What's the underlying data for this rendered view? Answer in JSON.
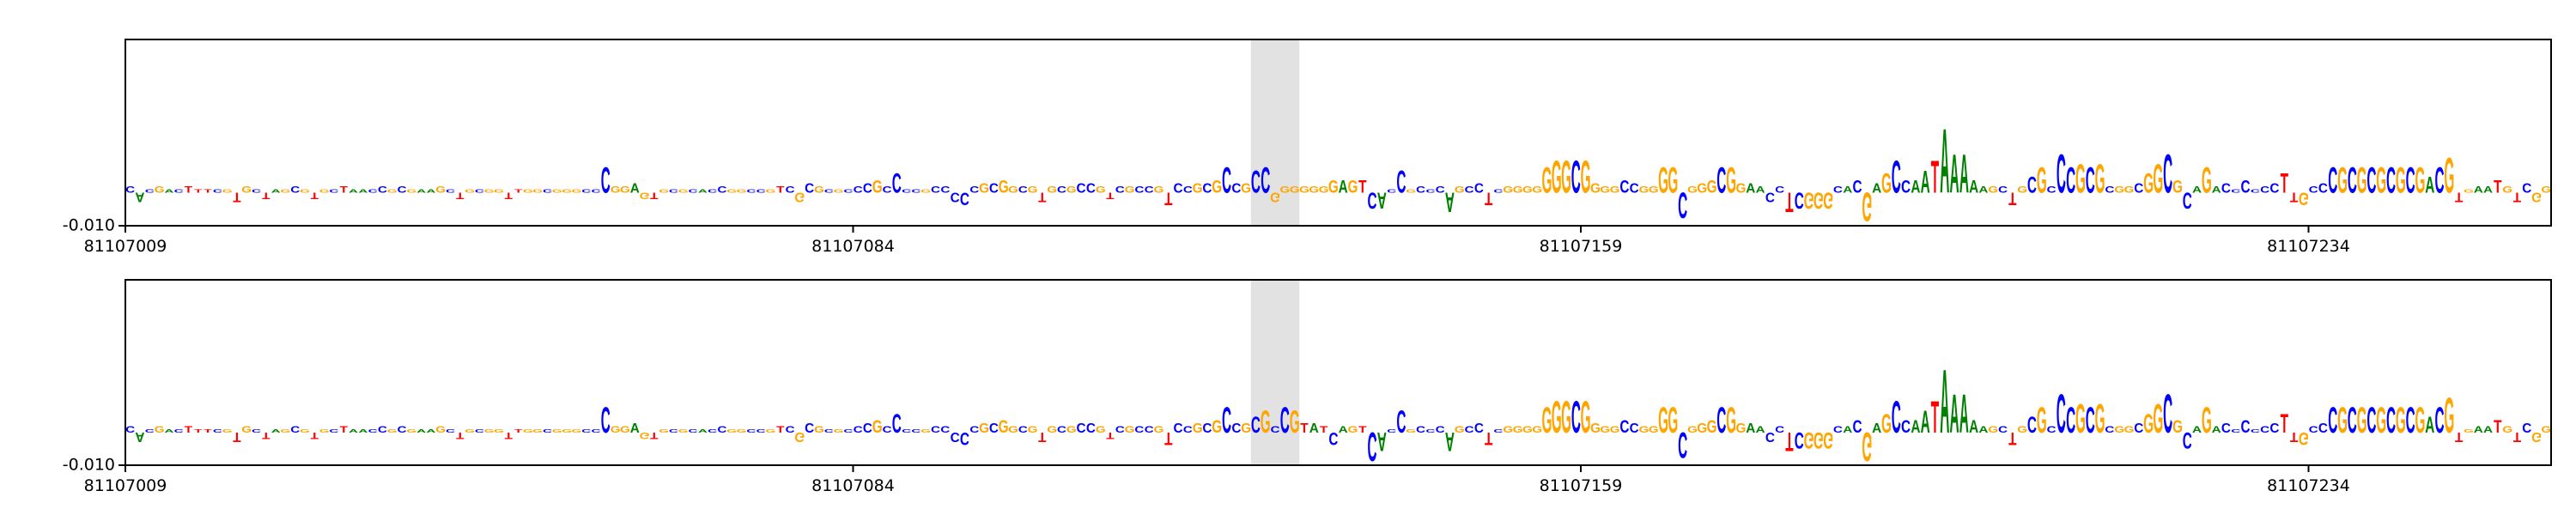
{
  "chart_data": [
    {
      "type": "logo",
      "xlim": [
        81107009,
        81107259
      ],
      "xticks": [
        81107009,
        81107084,
        81107159,
        81107234
      ],
      "ylim": [
        -0.01,
        0.0465
      ],
      "yticks": [
        {
          "value": -0.01,
          "label": "-0.010"
        }
      ],
      "highlight": [
        81107125,
        81107130
      ],
      "colors": {
        "A": "#008000",
        "C": "#0000ff",
        "G": "#ffa500",
        "T": "#ff0000"
      },
      "letters": [
        "C",
        "A",
        "C",
        "G",
        "A",
        "C",
        "T",
        "T",
        "T",
        "C",
        "G",
        "T",
        "G",
        "C",
        "T",
        "A",
        "G",
        "C",
        "G",
        "T",
        "G",
        "C",
        "T",
        "A",
        "A",
        "C",
        "C",
        "G",
        "C",
        "G",
        "A",
        "A",
        "G",
        "C",
        "T",
        "G",
        "C",
        "G",
        "G",
        "T",
        "T",
        "G",
        "G",
        "C",
        "G",
        "G",
        "G",
        "C",
        "C",
        "C",
        "G",
        "G",
        "A",
        "G",
        "T",
        "G",
        "C",
        "G",
        "C",
        "A",
        "C",
        "C",
        "G",
        "G",
        "C",
        "C",
        "G",
        "T",
        "C",
        "G",
        "C",
        "G",
        "C",
        "G",
        "C",
        "C",
        "C",
        "G",
        "C",
        "C",
        "C",
        "C",
        "G",
        "C",
        "C",
        "C",
        "C",
        "C",
        "G",
        "C",
        "G",
        "G",
        "C",
        "G",
        "T",
        "G",
        "C",
        "G",
        "C",
        "C",
        "G",
        "T",
        "C",
        "G",
        "C",
        "C",
        "G",
        "T",
        "C",
        "C",
        "G",
        "C",
        "G",
        "C",
        "C",
        "G",
        "C",
        "C",
        "G",
        "G",
        "G",
        "G",
        "G",
        "G",
        "G",
        "A",
        "G",
        "T",
        "C",
        "A",
        "C",
        "C",
        "G",
        "C",
        "C",
        "C",
        "A",
        "G",
        "C",
        "C",
        "T",
        "C",
        "G",
        "G",
        "G",
        "G",
        "G",
        "G",
        "G",
        "C",
        "G",
        "G",
        "G",
        "G",
        "C",
        "C",
        "G",
        "G",
        "G",
        "G",
        "C",
        "G",
        "G",
        "G",
        "C",
        "G",
        "G",
        "A",
        "A",
        "C",
        "C",
        "T",
        "C",
        "G",
        "G",
        "G",
        "C",
        "A",
        "C",
        "G",
        "A",
        "G",
        "C",
        "C",
        "A",
        "A",
        "T",
        "A",
        "A",
        "A",
        "A",
        "A",
        "G",
        "C",
        "T",
        "G",
        "C",
        "G",
        "C",
        "C",
        "C",
        "G",
        "C",
        "G",
        "C",
        "G",
        "G",
        "C",
        "G",
        "G",
        "C",
        "G",
        "C",
        "A",
        "G",
        "A",
        "C",
        "C",
        "C",
        "C",
        "C",
        "C",
        "T",
        "T",
        "G",
        "C",
        "C",
        "C",
        "G",
        "C",
        "G",
        "C",
        "G",
        "C",
        "G",
        "C",
        "G",
        "A",
        "C",
        "G",
        "T",
        "G",
        "A",
        "A",
        "T",
        "G",
        "T",
        "C",
        "G",
        "G"
      ],
      "values": [
        0.002,
        -0.003,
        0.001,
        0.002,
        0.001,
        0.001,
        0.002,
        0.001,
        0.001,
        0.001,
        0.001,
        -0.003,
        0.002,
        0.001,
        -0.002,
        0.001,
        0.001,
        0.002,
        0.001,
        -0.002,
        0.001,
        0.001,
        0.002,
        0.001,
        0.001,
        0.001,
        0.002,
        0.001,
        0.002,
        0.001,
        0.001,
        0.001,
        0.002,
        0.001,
        -0.002,
        0.001,
        0.001,
        0.001,
        0.001,
        -0.002,
        0.001,
        0.001,
        0.001,
        0.001,
        0.001,
        0.001,
        0.001,
        0.001,
        0.001,
        0.008,
        0.002,
        0.002,
        0.003,
        -0.002,
        -0.002,
        0.001,
        0.001,
        0.001,
        0.001,
        0.001,
        0.001,
        0.002,
        0.001,
        0.001,
        0.001,
        0.001,
        0.001,
        0.002,
        0.002,
        -0.003,
        0.003,
        0.002,
        0.001,
        0.001,
        0.001,
        0.002,
        0.003,
        0.004,
        0.002,
        0.006,
        0.001,
        0.001,
        0.001,
        0.002,
        0.002,
        -0.003,
        -0.004,
        0.002,
        0.003,
        0.003,
        0.004,
        0.002,
        0.002,
        0.002,
        -0.003,
        0.002,
        0.002,
        0.002,
        0.003,
        0.003,
        0.002,
        -0.002,
        0.002,
        0.002,
        0.002,
        0.002,
        0.002,
        -0.004,
        0.003,
        0.002,
        0.003,
        0.003,
        0.004,
        0.008,
        0.003,
        0.003,
        0.007,
        0.008,
        -0.003,
        0.002,
        0.002,
        0.002,
        0.002,
        0.002,
        0.004,
        0.004,
        0.004,
        0.004,
        -0.005,
        -0.005,
        0.001,
        0.007,
        0.001,
        0.002,
        0.001,
        0.002,
        -0.006,
        0.002,
        0.002,
        0.003,
        -0.004,
        0.001,
        0.002,
        0.002,
        0.002,
        0.002,
        0.008,
        0.01,
        0.01,
        0.01,
        0.01,
        0.003,
        0.002,
        0.002,
        0.004,
        0.003,
        0.002,
        0.002,
        0.008,
        0.008,
        -0.008,
        0.002,
        0.003,
        0.004,
        0.008,
        0.008,
        0.003,
        0.003,
        0.002,
        -0.003,
        0.002,
        -0.006,
        -0.005,
        -0.005,
        -0.005,
        -0.005,
        0.002,
        0.002,
        0.004,
        -0.009,
        0.003,
        0.006,
        0.01,
        0.004,
        0.004,
        0.007,
        0.01,
        0.02,
        0.012,
        0.012,
        0.004,
        0.002,
        0.002,
        0.002,
        -0.004,
        0.002,
        0.005,
        0.008,
        0.002,
        0.012,
        0.008,
        0.009,
        0.008,
        0.009,
        0.002,
        0.002,
        0.002,
        0.003,
        0.006,
        0.009,
        0.012,
        0.004,
        -0.005,
        0.002,
        0.008,
        0.002,
        0.003,
        0.001,
        0.004,
        0.001,
        0.002,
        0.003,
        0.006,
        -0.003,
        -0.004,
        0.002,
        0.003,
        0.008,
        0.008,
        0.008,
        0.008,
        0.008,
        0.008,
        0.008,
        0.008,
        0.008,
        0.008,
        0.005,
        0.008,
        0.011,
        -0.003,
        0.001,
        0.002,
        0.002,
        0.004,
        0.002,
        -0.003,
        0.003,
        -0.003,
        0.002
      ]
    },
    {
      "type": "logo",
      "xlim": [
        81107009,
        81107259
      ],
      "xticks": [
        81107009,
        81107084,
        81107159,
        81107234
      ],
      "ylim": [
        -0.01,
        0.0465
      ],
      "yticks": [
        {
          "value": -0.01,
          "label": "-0.010"
        }
      ],
      "highlight": [
        81107125,
        81107130
      ],
      "colors": {
        "A": "#008000",
        "C": "#0000ff",
        "G": "#ffa500",
        "T": "#ff0000"
      },
      "letters": [
        "C",
        "A",
        "C",
        "G",
        "A",
        "C",
        "T",
        "T",
        "T",
        "C",
        "G",
        "T",
        "G",
        "C",
        "T",
        "A",
        "G",
        "C",
        "G",
        "T",
        "G",
        "C",
        "T",
        "A",
        "A",
        "C",
        "C",
        "G",
        "C",
        "G",
        "A",
        "A",
        "G",
        "C",
        "T",
        "G",
        "C",
        "G",
        "G",
        "T",
        "T",
        "G",
        "G",
        "C",
        "G",
        "G",
        "G",
        "C",
        "C",
        "C",
        "G",
        "G",
        "A",
        "G",
        "T",
        "G",
        "C",
        "G",
        "C",
        "A",
        "C",
        "C",
        "G",
        "G",
        "C",
        "C",
        "G",
        "T",
        "C",
        "G",
        "C",
        "G",
        "C",
        "G",
        "C",
        "C",
        "C",
        "G",
        "C",
        "C",
        "C",
        "C",
        "G",
        "C",
        "C",
        "C",
        "C",
        "C",
        "G",
        "C",
        "G",
        "G",
        "C",
        "G",
        "T",
        "G",
        "C",
        "G",
        "C",
        "C",
        "G",
        "T",
        "C",
        "G",
        "C",
        "C",
        "G",
        "T",
        "C",
        "C",
        "G",
        "C",
        "G",
        "C",
        "C",
        "G",
        "C",
        "G",
        "C",
        "C",
        "G",
        "T",
        "A",
        "T",
        "C",
        "A",
        "G",
        "T",
        "C",
        "A",
        "C",
        "C",
        "G",
        "C",
        "C",
        "C",
        "A",
        "G",
        "C",
        "C",
        "T",
        "C",
        "G",
        "G",
        "G",
        "G",
        "G",
        "G",
        "G",
        "C",
        "G",
        "G",
        "G",
        "G",
        "C",
        "C",
        "G",
        "G",
        "G",
        "G",
        "C",
        "G",
        "G",
        "G",
        "C",
        "G",
        "G",
        "A",
        "A",
        "C",
        "C",
        "T",
        "C",
        "G",
        "G",
        "G",
        "C",
        "A",
        "C",
        "G",
        "A",
        "G",
        "C",
        "C",
        "A",
        "A",
        "T",
        "A",
        "A",
        "A",
        "A",
        "A",
        "G",
        "C",
        "T",
        "G",
        "C",
        "G",
        "C",
        "C",
        "C",
        "G",
        "C",
        "G",
        "C",
        "G",
        "G",
        "C",
        "G",
        "G",
        "C",
        "G",
        "C",
        "A",
        "G",
        "A",
        "C",
        "C",
        "C",
        "C",
        "C",
        "C",
        "T",
        "T",
        "G",
        "C",
        "C",
        "C",
        "G",
        "C",
        "G",
        "C",
        "G",
        "C",
        "G",
        "C",
        "G",
        "A",
        "C",
        "G",
        "T",
        "G",
        "A",
        "A",
        "T",
        "G",
        "T",
        "C",
        "G",
        "G"
      ],
      "values": [
        0.002,
        -0.003,
        0.001,
        0.002,
        0.001,
        0.001,
        0.002,
        0.001,
        0.001,
        0.001,
        0.001,
        -0.003,
        0.002,
        0.001,
        -0.002,
        0.001,
        0.001,
        0.002,
        0.001,
        -0.002,
        0.001,
        0.001,
        0.002,
        0.001,
        0.001,
        0.001,
        0.002,
        0.001,
        0.002,
        0.001,
        0.001,
        0.001,
        0.002,
        0.001,
        -0.002,
        0.001,
        0.001,
        0.001,
        0.001,
        -0.002,
        0.001,
        0.001,
        0.001,
        0.001,
        0.001,
        0.001,
        0.001,
        0.001,
        0.001,
        0.008,
        0.002,
        0.002,
        0.003,
        -0.002,
        -0.002,
        0.001,
        0.001,
        0.001,
        0.001,
        0.001,
        0.001,
        0.002,
        0.001,
        0.001,
        0.001,
        0.001,
        0.001,
        0.002,
        0.002,
        -0.003,
        0.003,
        0.002,
        0.001,
        0.001,
        0.001,
        0.002,
        0.003,
        0.004,
        0.002,
        0.006,
        0.001,
        0.001,
        0.001,
        0.002,
        0.002,
        -0.003,
        -0.004,
        0.002,
        0.003,
        0.003,
        0.004,
        0.002,
        0.002,
        0.002,
        -0.003,
        0.002,
        0.002,
        0.002,
        0.003,
        0.003,
        0.002,
        -0.002,
        0.002,
        0.002,
        0.002,
        0.002,
        0.002,
        -0.004,
        0.003,
        0.002,
        0.003,
        0.003,
        0.004,
        0.008,
        0.003,
        0.003,
        0.005,
        0.007,
        0.002,
        0.008,
        0.007,
        0.003,
        0.003,
        0.002,
        -0.004,
        0.002,
        0.002,
        0.002,
        -0.009,
        -0.006,
        0.001,
        0.007,
        0.001,
        0.002,
        0.001,
        0.002,
        -0.006,
        0.002,
        0.002,
        0.003,
        -0.004,
        0.001,
        0.002,
        0.002,
        0.002,
        0.002,
        0.008,
        0.01,
        0.01,
        0.01,
        0.01,
        0.003,
        0.002,
        0.002,
        0.004,
        0.003,
        0.002,
        0.002,
        0.008,
        0.008,
        -0.008,
        0.002,
        0.003,
        0.004,
        0.008,
        0.008,
        0.003,
        0.003,
        0.002,
        -0.003,
        0.002,
        -0.006,
        -0.005,
        -0.005,
        -0.005,
        -0.005,
        0.002,
        0.002,
        0.004,
        -0.009,
        0.003,
        0.006,
        0.01,
        0.004,
        0.004,
        0.007,
        0.01,
        0.02,
        0.012,
        0.012,
        0.004,
        0.002,
        0.002,
        0.002,
        -0.004,
        0.002,
        0.005,
        0.008,
        0.002,
        0.012,
        0.008,
        0.009,
        0.008,
        0.009,
        0.002,
        0.002,
        0.002,
        0.003,
        0.006,
        0.009,
        0.012,
        0.004,
        -0.005,
        0.002,
        0.008,
        0.002,
        0.003,
        0.001,
        0.004,
        0.001,
        0.002,
        0.003,
        0.006,
        -0.003,
        -0.004,
        0.002,
        0.003,
        0.008,
        0.008,
        0.008,
        0.008,
        0.008,
        0.008,
        0.008,
        0.008,
        0.008,
        0.008,
        0.005,
        0.008,
        0.011,
        -0.003,
        0.001,
        0.002,
        0.002,
        0.004,
        0.002,
        -0.003,
        0.003,
        -0.003,
        0.002
      ]
    }
  ]
}
